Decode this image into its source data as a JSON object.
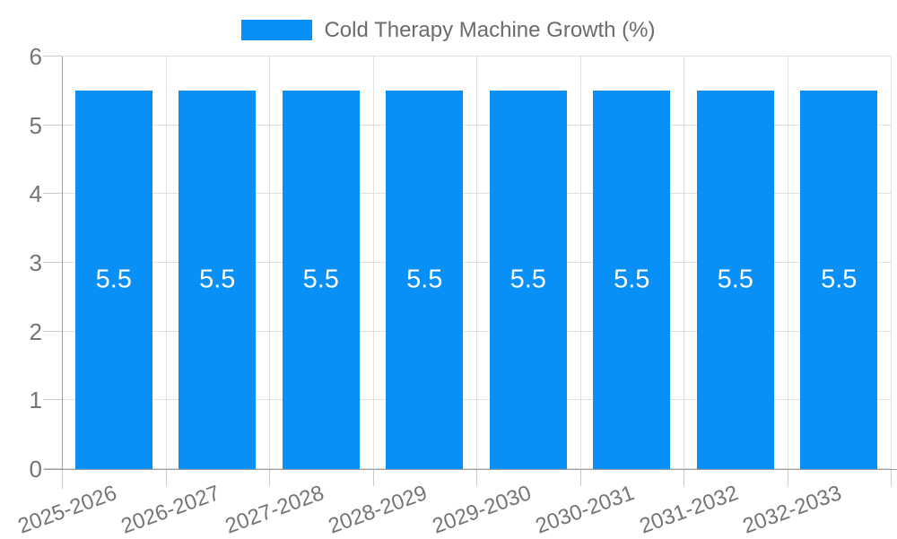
{
  "chart_data": {
    "type": "bar",
    "title": "Cold Therapy Machine Growth (%)",
    "legend": {
      "position": "top",
      "label": "Cold Therapy Machine Growth (%)",
      "swatch_icon": "legend-swatch-icon"
    },
    "categories": [
      "2025-2026",
      "2026-2027",
      "2027-2028",
      "2028-2029",
      "2029-2030",
      "2030-2031",
      "2031-2032",
      "2032-2033"
    ],
    "values": [
      5.5,
      5.5,
      5.5,
      5.5,
      5.5,
      5.5,
      5.5,
      5.5
    ],
    "value_labels": [
      "5.5",
      "5.5",
      "5.5",
      "5.5",
      "5.5",
      "5.5",
      "5.5",
      "5.5"
    ],
    "xlabel": "",
    "ylabel": "",
    "ylim": [
      0,
      6
    ],
    "yticks": [
      0,
      1,
      2,
      3,
      4,
      5,
      6
    ],
    "grid": true,
    "x_label_rotation_deg": -20,
    "colors": {
      "bar": "#0890f6",
      "grid": "#e0e0e0",
      "axis": "#9e9e9e",
      "tick": "#c9c9c9",
      "label": "#757575",
      "legend_text": "#6b6b6b",
      "value_label": "#ffffff"
    }
  }
}
